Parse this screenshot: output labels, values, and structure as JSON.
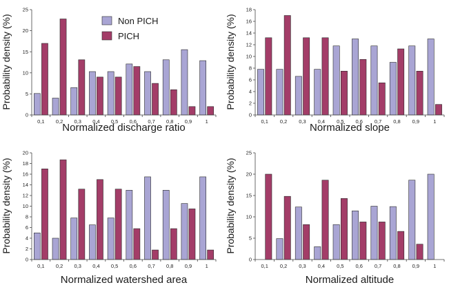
{
  "colors": {
    "non_pich": "#a9a5d4",
    "pich": "#a33d68",
    "bar_stroke": "#2a2a2a",
    "axis": "#444444",
    "text": "#1a1a1a"
  },
  "legend": {
    "placement": "top-center of first chart",
    "entries": [
      "Non PICH",
      "PICH"
    ]
  },
  "chart_data": [
    {
      "type": "bar",
      "title": "",
      "xlabel": "Normalized discharge ratio",
      "ylabel": "Probability density (%)",
      "categories": [
        "0,1",
        "0,2",
        "0,3",
        "0,4",
        "0,5",
        "0,6",
        "0,7",
        "0,8",
        "0,9",
        "1"
      ],
      "ylim": [
        0,
        25
      ],
      "yticks": [
        0,
        5,
        10,
        15,
        20,
        25
      ],
      "grid": false,
      "series": [
        {
          "name": "Non PICH",
          "values": [
            5.1,
            4.0,
            6.5,
            10.3,
            10.3,
            12.1,
            10.3,
            13.1,
            15.5,
            12.9
          ]
        },
        {
          "name": "PICH",
          "values": [
            17.0,
            22.8,
            13.1,
            9.0,
            9.0,
            11.5,
            7.5,
            6.0,
            2.0,
            2.0
          ]
        }
      ]
    },
    {
      "type": "bar",
      "title": "",
      "xlabel": "Normalized slope",
      "ylabel": "Probability density (%)",
      "categories": [
        "0,1",
        "0,2",
        "0,3",
        "0,4",
        "0,5",
        "0,6",
        "0,7",
        "0,8",
        "0,9",
        "1"
      ],
      "ylim": [
        0,
        18
      ],
      "yticks": [
        0,
        2,
        4,
        6,
        8,
        10,
        12,
        14,
        16,
        18
      ],
      "grid": false,
      "series": [
        {
          "name": "Non PICH",
          "values": [
            7.8,
            7.8,
            6.6,
            7.8,
            11.8,
            13.0,
            11.8,
            9.0,
            11.8,
            13.0
          ]
        },
        {
          "name": "PICH",
          "values": [
            13.2,
            17.0,
            13.2,
            13.2,
            7.5,
            9.5,
            5.5,
            11.3,
            7.5,
            1.8
          ]
        }
      ]
    },
    {
      "type": "bar",
      "title": "",
      "xlabel": "Normalized watershed area",
      "ylabel": "Probability density (%)",
      "categories": [
        "0,1",
        "0,2",
        "0,3",
        "0,4",
        "0,5",
        "0,6",
        "0,7",
        "0,8",
        "0,9",
        "1"
      ],
      "ylim": [
        0,
        20
      ],
      "yticks": [
        0,
        2,
        4,
        6,
        8,
        10,
        12,
        14,
        16,
        18,
        20
      ],
      "grid": false,
      "series": [
        {
          "name": "Non PICH",
          "values": [
            5.0,
            4.0,
            7.8,
            6.5,
            7.8,
            13.0,
            15.5,
            13.0,
            10.5,
            15.5
          ]
        },
        {
          "name": "PICH",
          "values": [
            17.0,
            18.7,
            13.2,
            15.0,
            13.2,
            5.8,
            1.8,
            5.8,
            9.5,
            1.8
          ]
        }
      ]
    },
    {
      "type": "bar",
      "title": "",
      "xlabel": "Normalized altitude",
      "ylabel": "Probability density (%)",
      "categories": [
        "0,1",
        "0,2",
        "0,3",
        "0,4",
        "0,5",
        "0,6",
        "0,7",
        "0,8",
        "0,9",
        "1"
      ],
      "ylim": [
        0,
        25
      ],
      "yticks": [
        0,
        5,
        10,
        15,
        20,
        25
      ],
      "grid": false,
      "series": [
        {
          "name": "Non PICH",
          "values": [
            0,
            4.9,
            12.3,
            3.0,
            8.2,
            11.4,
            12.5,
            12.4,
            18.6,
            20.0
          ]
        },
        {
          "name": "PICH",
          "values": [
            20.0,
            14.8,
            8.2,
            18.6,
            14.3,
            8.8,
            8.8,
            6.6,
            3.6,
            0
          ]
        }
      ]
    }
  ]
}
